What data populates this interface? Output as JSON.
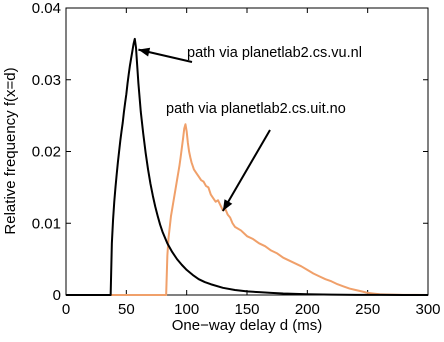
{
  "chart_data": {
    "type": "line",
    "title": "",
    "xlabel": "One−way delay d (ms)",
    "ylabel": "Relative frequency f(x=d)",
    "xlim": [
      0,
      300
    ],
    "ylim": [
      0,
      0.04
    ],
    "xticks": [
      0,
      50,
      100,
      150,
      200,
      250,
      300
    ],
    "xtick_labels": [
      "0",
      "50",
      "100",
      "150",
      "200",
      "250",
      "300"
    ],
    "yticks": [
      0,
      0.01,
      0.02,
      0.03,
      0.04
    ],
    "ytick_labels": [
      "0",
      "0.01",
      "0.02",
      "0.03",
      "0.04"
    ],
    "grid": false,
    "series": [
      {
        "color": "#000000",
        "x": [
          0,
          37,
          38,
          39,
          40,
          41,
          42,
          43,
          44,
          45,
          46,
          47,
          48,
          49,
          50,
          51,
          52,
          53,
          54,
          55,
          56,
          57,
          58,
          59,
          60,
          62,
          64,
          66,
          68,
          70,
          72,
          74,
          76,
          78,
          80,
          84,
          88,
          92,
          96,
          100,
          105,
          110,
          115,
          120,
          130,
          140,
          150,
          160,
          170,
          180,
          190,
          200,
          220,
          240,
          260,
          280,
          300
        ],
        "y": [
          0,
          0,
          0.0072,
          0.0105,
          0.013,
          0.015,
          0.0168,
          0.0185,
          0.02,
          0.0215,
          0.0228,
          0.024,
          0.0255,
          0.0268,
          0.028,
          0.0295,
          0.0308,
          0.032,
          0.033,
          0.034,
          0.035,
          0.0357,
          0.0345,
          0.032,
          0.0295,
          0.0255,
          0.0225,
          0.0198,
          0.0175,
          0.0155,
          0.0138,
          0.0123,
          0.011,
          0.0098,
          0.0088,
          0.0072,
          0.006,
          0.005,
          0.0042,
          0.0035,
          0.0028,
          0.0022,
          0.0018,
          0.0015,
          0.001,
          0.0007,
          0.0005,
          0.0004,
          0.0003,
          0.0002,
          0.00015,
          0.0001,
          5e-05,
          2e-05,
          1e-05,
          0,
          0
        ]
      },
      {
        "color": "#f0a06a",
        "x": [
          0,
          83,
          84,
          85,
          86,
          87,
          88,
          89,
          90,
          91,
          92,
          93,
          94,
          95,
          96,
          97,
          98,
          99,
          100,
          101,
          102,
          103,
          104,
          105,
          106,
          108,
          110,
          112,
          114,
          116,
          118,
          120,
          122,
          124,
          126,
          128,
          130,
          132,
          134,
          136,
          138,
          140,
          145,
          150,
          155,
          160,
          165,
          170,
          175,
          180,
          185,
          190,
          195,
          200,
          205,
          210,
          215,
          220,
          225,
          230,
          235,
          240,
          245,
          250,
          255,
          260,
          270,
          280,
          290,
          300
        ],
        "y": [
          0,
          0,
          0.0055,
          0.008,
          0.0095,
          0.011,
          0.012,
          0.013,
          0.014,
          0.015,
          0.016,
          0.017,
          0.018,
          0.0192,
          0.0205,
          0.0218,
          0.0232,
          0.0238,
          0.0228,
          0.0212,
          0.02,
          0.0192,
          0.0185,
          0.018,
          0.0175,
          0.017,
          0.0165,
          0.016,
          0.0158,
          0.0152,
          0.015,
          0.014,
          0.0135,
          0.013,
          0.0132,
          0.0125,
          0.0118,
          0.012,
          0.0112,
          0.0108,
          0.01,
          0.0095,
          0.009,
          0.0082,
          0.0078,
          0.0072,
          0.0068,
          0.0062,
          0.0058,
          0.0052,
          0.0048,
          0.0044,
          0.004,
          0.0035,
          0.003,
          0.0026,
          0.0022,
          0.0019,
          0.0015,
          0.0012,
          0.0009,
          0.0007,
          0.0005,
          0.0003,
          0.0002,
          0.0001,
          5e-05,
          2e-05,
          1e-05,
          0
        ]
      }
    ],
    "annotations": [
      {
        "text": "path via planetlab2.cs.vu.nl",
        "series": 0,
        "target_x": 60,
        "target_y": 0.0342
      },
      {
        "text": "path via planetlab2.cs.uit.no",
        "series": 1,
        "target_x": 130,
        "target_y": 0.0117
      }
    ]
  }
}
